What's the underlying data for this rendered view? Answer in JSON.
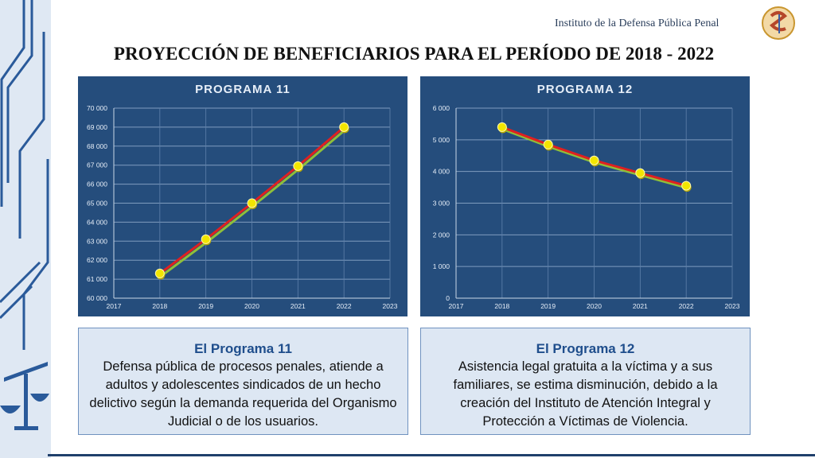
{
  "header": {
    "org_name": "Instituto de la Defensa Pública Penal",
    "title": "PROYECCIÓN DE BENEFICIARIOS PARA EL PERÍODO DE 2018 - 2022"
  },
  "chart_data": [
    {
      "type": "line",
      "title": "PROGRAMA 11",
      "x": [
        2018,
        2019,
        2020,
        2021,
        2022
      ],
      "values": [
        61300,
        63100,
        65000,
        66950,
        69000
      ],
      "xlim": [
        2017,
        2023
      ],
      "ylim": [
        60000,
        70000
      ],
      "x_ticks": [
        "2017",
        "2018",
        "2019",
        "2020",
        "2021",
        "2022",
        "2023"
      ],
      "y_ticks": [
        60000,
        61000,
        62000,
        63000,
        64000,
        65000,
        66000,
        67000,
        68000,
        69000,
        70000
      ],
      "y_tick_labels": [
        "60 000",
        "61 000",
        "62 000",
        "63 000",
        "64 000",
        "65 000",
        "66 000",
        "67 000",
        "68 000",
        "69 000",
        "70 000"
      ],
      "grid": true,
      "line_color": "#e02020",
      "marker_color": "#f2e600"
    },
    {
      "type": "line",
      "title": "PROGRAMA  12",
      "x": [
        2018,
        2019,
        2020,
        2021,
        2022
      ],
      "values": [
        5400,
        4850,
        4350,
        3950,
        3550
      ],
      "xlim": [
        2017,
        2023
      ],
      "ylim": [
        0,
        6000
      ],
      "x_ticks": [
        "2017",
        "2018",
        "2019",
        "2020",
        "2021",
        "2022",
        "2023"
      ],
      "y_ticks": [
        0,
        1000,
        2000,
        3000,
        4000,
        5000,
        6000
      ],
      "y_tick_labels": [
        "0",
        "1 000",
        "2 000",
        "3 000",
        "4 000",
        "5 000",
        "6 000"
      ],
      "grid": true,
      "line_color": "#e02020",
      "marker_color": "#f2e600"
    }
  ],
  "descriptions": [
    {
      "heading": "El Programa 11",
      "text": "Defensa pública de procesos penales, atiende a adultos y adolescentes sindicados de un hecho delictivo según la demanda requerida del Organismo Judicial o de los usuarios."
    },
    {
      "heading": "El Programa 12",
      "text": "Asistencia legal gratuita a la víctima y a sus familiares, se estima disminución, debido a la creación del Instituto de Atención Integral y Protección a Víctimas de Violencia."
    }
  ],
  "colors": {
    "panel_bg": "#254d7c",
    "box_bg": "#dde7f3",
    "heading_blue": "#1f4e8c"
  }
}
